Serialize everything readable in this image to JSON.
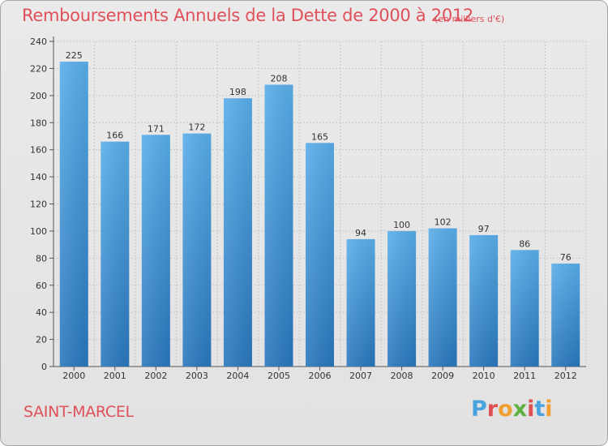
{
  "header": {
    "title": "Remboursements Annuels de la Dette de 2000 à 2012",
    "subtitle": "(en milliers d'€)"
  },
  "footer": {
    "town": "SAINT-MARCEL",
    "logo_text": "Proxiti",
    "logo_colors": [
      "#4aa3df",
      "#e05050",
      "#f0a030",
      "#60b040",
      "#e05050",
      "#4aa3df",
      "#f0a030"
    ]
  },
  "colors": {
    "title": "#e0505a",
    "bar_top": "#5aaeea",
    "bar_bottom": "#2a78bd",
    "grid": "#c8c8c8",
    "axis_text": "#333333"
  },
  "chart_data": {
    "type": "bar",
    "title": "Remboursements Annuels de la Dette de 2000 à 2012",
    "subtitle": "(en milliers d'€)",
    "categories": [
      "2000",
      "2001",
      "2002",
      "2003",
      "2004",
      "2005",
      "2006",
      "2007",
      "2008",
      "2009",
      "2010",
      "2011",
      "2012"
    ],
    "values": [
      225,
      166,
      171,
      172,
      198,
      208,
      165,
      94,
      100,
      102,
      97,
      86,
      76
    ],
    "ylim": [
      0,
      240
    ],
    "yticks": [
      0,
      20,
      40,
      60,
      80,
      100,
      120,
      140,
      160,
      180,
      200,
      220,
      240
    ],
    "grid": true,
    "xlabel": "",
    "ylabel": ""
  }
}
